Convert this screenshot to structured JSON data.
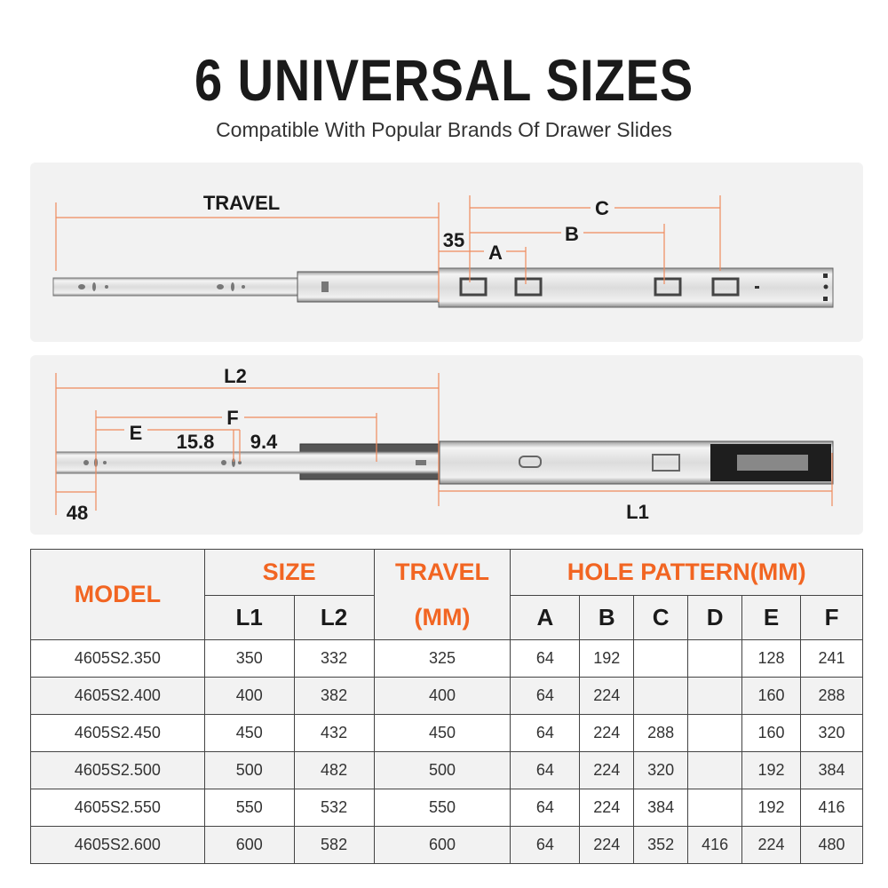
{
  "header": {
    "title": "6 UNIVERSAL SIZES",
    "subtitle": "Compatible With Popular Brands Of Drawer Slides"
  },
  "diagram_top": {
    "labels": {
      "travel": "TRAVEL",
      "c": "C",
      "b": "B",
      "a": "A",
      "offset": "35"
    }
  },
  "diagram_bottom": {
    "labels": {
      "l2": "L2",
      "f": "F",
      "e": "E",
      "d1": "15.8",
      "d2": "9.4",
      "offset": "48",
      "l1": "L1"
    }
  },
  "colors": {
    "accent": "#f26522",
    "dimension_line": "#f08a5d",
    "panel": "#f2f2f2"
  },
  "table": {
    "headers": {
      "model": "MODEL",
      "size": "SIZE",
      "travel": "TRAVEL",
      "travel_unit": "(MM)",
      "hole_pattern": "HOLE PATTERN(MM)",
      "sub": [
        "L1",
        "L2",
        "A",
        "B",
        "C",
        "D",
        "E",
        "F"
      ]
    },
    "rows": [
      {
        "model": "4605S2.350",
        "l1": "350",
        "l2": "332",
        "travel": "325",
        "a": "64",
        "b": "192",
        "c": "",
        "d": "",
        "e": "128",
        "f": "241"
      },
      {
        "model": "4605S2.400",
        "l1": "400",
        "l2": "382",
        "travel": "400",
        "a": "64",
        "b": "224",
        "c": "",
        "d": "",
        "e": "160",
        "f": "288"
      },
      {
        "model": "4605S2.450",
        "l1": "450",
        "l2": "432",
        "travel": "450",
        "a": "64",
        "b": "224",
        "c": "288",
        "d": "",
        "e": "160",
        "f": "320"
      },
      {
        "model": "4605S2.500",
        "l1": "500",
        "l2": "482",
        "travel": "500",
        "a": "64",
        "b": "224",
        "c": "320",
        "d": "",
        "e": "192",
        "f": "384"
      },
      {
        "model": "4605S2.550",
        "l1": "550",
        "l2": "532",
        "travel": "550",
        "a": "64",
        "b": "224",
        "c": "384",
        "d": "",
        "e": "192",
        "f": "416"
      },
      {
        "model": "4605S2.600",
        "l1": "600",
        "l2": "582",
        "travel": "600",
        "a": "64",
        "b": "224",
        "c": "352",
        "d": "416",
        "e": "224",
        "f": "480"
      }
    ]
  }
}
